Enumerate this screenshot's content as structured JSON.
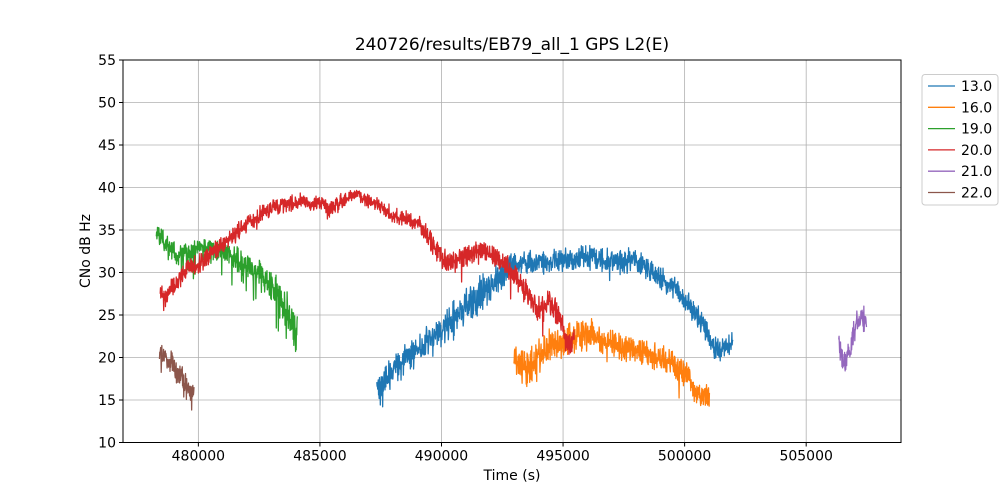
{
  "chart_data": {
    "type": "line",
    "title": "240726/results/EB79_all_1 GPS L2(E)",
    "xlabel": "Time (s)",
    "ylabel": "CNo dB Hz",
    "xlim": [
      476900,
      508900
    ],
    "ylim": [
      10,
      55
    ],
    "xticks": [
      480000,
      485000,
      490000,
      495000,
      500000,
      505000
    ],
    "yticks": [
      10,
      15,
      20,
      25,
      30,
      35,
      40,
      45,
      50,
      55
    ],
    "grid": true,
    "grid_color": "#b0b0b0",
    "axis_color": "#000000",
    "legend_position": "outside-right",
    "points_format": "[time_s, mean_CNo_dBHz, noise_halfband_dBHz]",
    "sample_step_s": 12,
    "series": [
      {
        "name": "13.0",
        "color": "#1f77b4",
        "spike_prob": 0.008,
        "spike_scale": 1.2,
        "points": [
          [
            487340,
            17.0,
            2.3
          ],
          [
            487620,
            16.6,
            2.9
          ],
          [
            488000,
            18.6,
            2.0
          ],
          [
            488700,
            20.2,
            2.0
          ],
          [
            489400,
            21.6,
            2.2
          ],
          [
            490000,
            23.2,
            2.3
          ],
          [
            490700,
            25.2,
            2.5
          ],
          [
            491400,
            26.8,
            2.6
          ],
          [
            492100,
            28.8,
            2.1
          ],
          [
            492700,
            30.3,
            1.8
          ],
          [
            493300,
            31.2,
            1.5
          ],
          [
            494300,
            31.2,
            1.5
          ],
          [
            495300,
            31.6,
            1.7
          ],
          [
            496300,
            31.8,
            1.7
          ],
          [
            497100,
            31.2,
            1.7
          ],
          [
            497900,
            31.5,
            1.6
          ],
          [
            498500,
            30.5,
            1.6
          ],
          [
            499100,
            29.2,
            1.7
          ],
          [
            499700,
            27.9,
            1.7
          ],
          [
            500300,
            25.6,
            1.7
          ],
          [
            500900,
            23.2,
            1.7
          ],
          [
            501250,
            20.9,
            1.7
          ],
          [
            501500,
            20.8,
            1.5
          ],
          [
            501800,
            21.4,
            1.4
          ],
          [
            501980,
            21.8,
            1.3
          ]
        ]
      },
      {
        "name": "16.0",
        "color": "#ff7f0e",
        "spike_prob": 0.02,
        "spike_scale": 1.5,
        "points": [
          [
            492980,
            19.8,
            1.9
          ],
          [
            493250,
            19.0,
            2.3
          ],
          [
            493550,
            18.6,
            2.5
          ],
          [
            493950,
            20.2,
            2.3
          ],
          [
            494450,
            21.4,
            2.3
          ],
          [
            494950,
            22.0,
            2.3
          ],
          [
            495450,
            22.6,
            2.5
          ],
          [
            495850,
            23.0,
            2.5
          ],
          [
            496350,
            22.4,
            2.3
          ],
          [
            496950,
            21.6,
            2.1
          ],
          [
            497550,
            21.1,
            2.0
          ],
          [
            498150,
            20.8,
            2.0
          ],
          [
            498750,
            20.2,
            2.0
          ],
          [
            499350,
            19.4,
            2.0
          ],
          [
            499950,
            18.3,
            1.9
          ],
          [
            500350,
            16.6,
            1.8
          ],
          [
            500650,
            15.4,
            1.7
          ],
          [
            501020,
            15.2,
            1.8
          ]
        ]
      },
      {
        "name": "19.0",
        "color": "#2ca02c",
        "spike_prob": 0.045,
        "spike_scale": 1.9,
        "points": [
          [
            478270,
            34.8,
            1.2
          ],
          [
            478520,
            34.0,
            1.3
          ],
          [
            478820,
            33.0,
            1.3
          ],
          [
            479120,
            32.1,
            1.3
          ],
          [
            479420,
            32.4,
            1.3
          ],
          [
            479820,
            32.7,
            1.3
          ],
          [
            480320,
            33.0,
            1.4
          ],
          [
            480820,
            32.7,
            1.5
          ],
          [
            481320,
            32.0,
            1.6
          ],
          [
            481820,
            31.2,
            1.7
          ],
          [
            482320,
            30.1,
            1.8
          ],
          [
            482820,
            29.0,
            2.0
          ],
          [
            483220,
            27.6,
            2.3
          ],
          [
            483520,
            26.2,
            2.7
          ],
          [
            483770,
            24.8,
            3.0
          ],
          [
            483960,
            23.6,
            3.2
          ],
          [
            484070,
            22.8,
            3.0
          ]
        ]
      },
      {
        "name": "20.0",
        "color": "#d62728",
        "spike_prob": 0.008,
        "spike_scale": 1.4,
        "points": [
          [
            478430,
            27.9,
            1.4
          ],
          [
            478660,
            27.1,
            1.4
          ],
          [
            478920,
            28.1,
            1.3
          ],
          [
            479320,
            29.6,
            1.3
          ],
          [
            479720,
            30.7,
            1.3
          ],
          [
            480220,
            31.4,
            1.3
          ],
          [
            480820,
            32.9,
            1.3
          ],
          [
            481420,
            34.3,
            1.3
          ],
          [
            482020,
            35.7,
            1.3
          ],
          [
            482620,
            36.9,
            1.2
          ],
          [
            483220,
            37.7,
            1.2
          ],
          [
            483820,
            38.2,
            1.1
          ],
          [
            484320,
            38.4,
            1.1
          ],
          [
            484720,
            38.0,
            1.1
          ],
          [
            485100,
            38.3,
            1.1
          ],
          [
            485450,
            37.4,
            1.1
          ],
          [
            485800,
            38.3,
            1.1
          ],
          [
            486300,
            39.0,
            1.0
          ],
          [
            486550,
            39.3,
            0.9
          ],
          [
            486950,
            38.5,
            1.0
          ],
          [
            487400,
            37.9,
            1.0
          ],
          [
            487950,
            36.9,
            1.1
          ],
          [
            488450,
            36.3,
            1.1
          ],
          [
            488950,
            35.9,
            1.2
          ],
          [
            489350,
            34.9,
            1.3
          ],
          [
            489650,
            33.3,
            1.4
          ],
          [
            489950,
            31.9,
            1.5
          ],
          [
            490350,
            31.1,
            1.5
          ],
          [
            490850,
            31.9,
            1.5
          ],
          [
            491350,
            32.5,
            1.5
          ],
          [
            491950,
            32.1,
            1.5
          ],
          [
            492450,
            31.3,
            1.5
          ],
          [
            492950,
            29.9,
            1.6
          ],
          [
            493350,
            28.3,
            1.7
          ],
          [
            493750,
            26.6,
            1.8
          ],
          [
            494050,
            25.3,
            1.9
          ],
          [
            494350,
            26.7,
            1.9
          ],
          [
            494650,
            25.9,
            1.9
          ],
          [
            494950,
            23.6,
            1.8
          ],
          [
            495150,
            21.9,
            1.6
          ],
          [
            495330,
            21.6,
            1.5
          ],
          [
            495460,
            22.4,
            1.4
          ]
        ]
      },
      {
        "name": "21.0",
        "color": "#9467bd",
        "spike_prob": 0.02,
        "spike_scale": 1.2,
        "points": [
          [
            506340,
            21.8,
            1.2
          ],
          [
            506470,
            20.0,
            2.2
          ],
          [
            506600,
            19.4,
            2.2
          ],
          [
            506730,
            20.3,
            1.8
          ],
          [
            506850,
            21.5,
            1.8
          ],
          [
            506950,
            23.2,
            1.9
          ],
          [
            507100,
            24.0,
            2.0
          ],
          [
            507280,
            24.6,
            2.0
          ],
          [
            507400,
            24.3,
            2.1
          ],
          [
            507480,
            25.0,
            1.7
          ]
        ]
      },
      {
        "name": "22.0",
        "color": "#8c564b",
        "spike_prob": 0.03,
        "spike_scale": 1.4,
        "points": [
          [
            478400,
            20.6,
            1.8
          ],
          [
            478560,
            20.2,
            1.4
          ],
          [
            478760,
            19.7,
            1.4
          ],
          [
            478960,
            19.2,
            1.5
          ],
          [
            479160,
            18.4,
            1.6
          ],
          [
            479360,
            17.7,
            1.6
          ],
          [
            479560,
            16.7,
            1.6
          ],
          [
            479700,
            15.7,
            1.5
          ],
          [
            479820,
            16.0,
            1.3
          ]
        ]
      }
    ],
    "legend": {
      "entries": [
        {
          "label": "13.0",
          "color": "#1f77b4"
        },
        {
          "label": "16.0",
          "color": "#ff7f0e"
        },
        {
          "label": "19.0",
          "color": "#2ca02c"
        },
        {
          "label": "20.0",
          "color": "#d62728"
        },
        {
          "label": "21.0",
          "color": "#9467bd"
        },
        {
          "label": "22.0",
          "color": "#8c564b"
        }
      ]
    }
  }
}
